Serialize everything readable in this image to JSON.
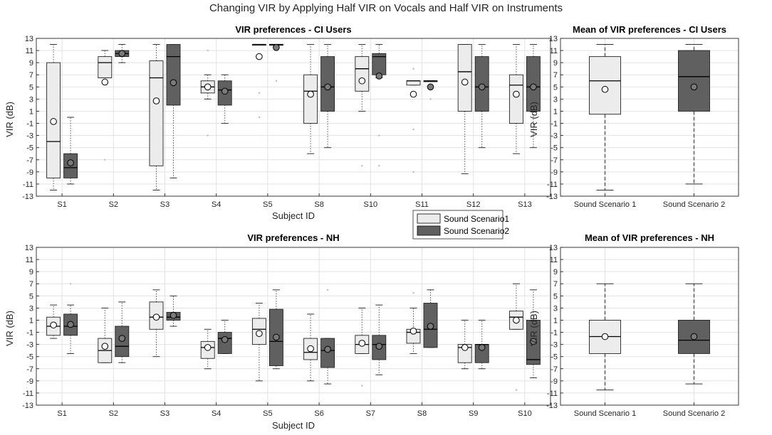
{
  "figure_title": "Changing VIR by Applying Half VIR on Vocals and Half VIR on Instruments",
  "colors": {
    "scenario1": "#ececec",
    "scenario2": "#606060",
    "grid": "#e2e2e2",
    "axis": "#262626"
  },
  "chart_data": [
    {
      "type": "boxplot",
      "id": "ci_subjects",
      "title": "VIR preferences - CI Users",
      "xlabel": "Subject ID",
      "ylabel": "VIR (dB)",
      "ylim": [
        -13,
        13
      ],
      "yticks": [
        "13",
        "11",
        "9",
        "7",
        "5",
        "3",
        "1",
        "-1",
        "-3",
        "-5",
        "-7",
        "-9",
        "-11",
        "-13"
      ],
      "categories": [
        "S1",
        "S2",
        "S3",
        "S4",
        "S5",
        "S8",
        "S10",
        "S11",
        "S12",
        "S13"
      ],
      "legend": {
        "position": "bottom-right-outside",
        "entries": [
          "Sound Scenario1",
          "Sound Scenario2"
        ]
      },
      "series": [
        {
          "name": "Sound Scenario1",
          "boxes": [
            {
              "q1": -10,
              "median": -4,
              "q3": 9,
              "wlo": -12,
              "whi": 12,
              "mean": -0.7,
              "outliers": []
            },
            {
              "q1": 6.5,
              "median": 9,
              "q3": 10,
              "wlo": 6.5,
              "whi": 11,
              "mean": 5.8,
              "outliers": [
                -7
              ]
            },
            {
              "q1": -8,
              "median": 6.5,
              "q3": 9.3,
              "wlo": -12,
              "whi": 12,
              "mean": 2.7,
              "outliers": []
            },
            {
              "q1": 4,
              "median": 5,
              "q3": 6,
              "wlo": 3,
              "whi": 7,
              "mean": 5,
              "outliers": [
                11,
                -3
              ]
            },
            {
              "q1": 12,
              "median": 12,
              "q3": 12,
              "wlo": 12,
              "whi": 12,
              "mean": 10,
              "outliers": [
                4,
                0
              ]
            },
            {
              "q1": -1,
              "median": 4.3,
              "q3": 7,
              "wlo": -6,
              "whi": 12,
              "mean": 3.8,
              "outliers": []
            },
            {
              "q1": 4.3,
              "median": 8,
              "q3": 10,
              "wlo": 1,
              "whi": 12,
              "mean": 6,
              "outliers": [
                -8
              ]
            },
            {
              "q1": 5.3,
              "median": 6,
              "q3": 6,
              "wlo": 5.3,
              "whi": 6,
              "mean": 3.8,
              "outliers": [
                8,
                -2,
                -9
              ]
            },
            {
              "q1": 1,
              "median": 7.5,
              "q3": 12,
              "wlo": -9.3,
              "whi": 12,
              "mean": 5.8,
              "outliers": []
            },
            {
              "q1": -1,
              "median": 5.3,
              "q3": 7,
              "wlo": -6,
              "whi": 12,
              "mean": 3.8,
              "outliers": []
            }
          ]
        },
        {
          "name": "Sound Scenario2",
          "boxes": [
            {
              "q1": -10,
              "median": -8.3,
              "q3": -6,
              "wlo": -11,
              "whi": 0,
              "mean": -7.5,
              "outliers": []
            },
            {
              "q1": 10,
              "median": 10.5,
              "q3": 11,
              "wlo": 9,
              "whi": 12,
              "mean": 10.5,
              "outliers": []
            },
            {
              "q1": 2,
              "median": 10,
              "q3": 12,
              "wlo": -10,
              "whi": 12,
              "mean": 5.7,
              "outliers": []
            },
            {
              "q1": 2,
              "median": 4.5,
              "q3": 6,
              "wlo": -1,
              "whi": 7,
              "mean": 4.3,
              "outliers": []
            },
            {
              "q1": 12,
              "median": 12,
              "q3": 12,
              "wlo": 12,
              "whi": 12,
              "mean": 11.5,
              "outliers": [
                6
              ]
            },
            {
              "q1": 1,
              "median": 5,
              "q3": 10,
              "wlo": -5,
              "whi": 12,
              "mean": 5,
              "outliers": []
            },
            {
              "q1": 7,
              "median": 10,
              "q3": 10.5,
              "wlo": 6.5,
              "whi": 12,
              "mean": 6.8,
              "outliers": [
                -3,
                -8
              ]
            },
            {
              "q1": 6,
              "median": 6,
              "q3": 6,
              "wlo": 6,
              "whi": 6,
              "mean": 5,
              "outliers": [
                3
              ]
            },
            {
              "q1": 1,
              "median": 5,
              "q3": 10,
              "wlo": -5,
              "whi": 12,
              "mean": 5,
              "outliers": []
            },
            {
              "q1": 1,
              "median": 5,
              "q3": 10,
              "wlo": -5,
              "whi": 12,
              "mean": 5,
              "outliers": []
            }
          ]
        }
      ]
    },
    {
      "type": "boxplot",
      "id": "ci_mean",
      "title": "Mean of VIR preferences - CI Users",
      "xlabel": "",
      "ylabel": "VIR (dB)",
      "ylim": [
        -13,
        13
      ],
      "yticks": [
        "13",
        "11",
        "9",
        "7",
        "5",
        "3",
        "1",
        "-1",
        "-3",
        "-5",
        "-7",
        "-9",
        "-11",
        "-13"
      ],
      "categories": [
        "Sound Scenario 1",
        "Sound Scenario 2"
      ],
      "boxes": [
        {
          "q1": 0.5,
          "median": 6,
          "q3": 10,
          "wlo": -12,
          "whi": 12,
          "mean": 4.6
        },
        {
          "q1": 1,
          "median": 6.7,
          "q3": 11,
          "wlo": -11,
          "whi": 12,
          "mean": 5
        }
      ]
    },
    {
      "type": "boxplot",
      "id": "nh_subjects",
      "title": "VIR preferences - NH",
      "xlabel": "Subject ID",
      "ylabel": "VIR (dB)",
      "ylim": [
        -13,
        13
      ],
      "yticks": [
        "13",
        "11",
        "9",
        "7",
        "5",
        "3",
        "1",
        "-1",
        "-3",
        "-5",
        "-7",
        "-9",
        "-11",
        "-13"
      ],
      "categories": [
        "S1",
        "S2",
        "S3",
        "S4",
        "S5",
        "S6",
        "S7",
        "S8",
        "S9",
        "S10"
      ],
      "series": [
        {
          "name": "Sound Scenario1",
          "boxes": [
            {
              "q1": -1.5,
              "median": 0,
              "q3": 1.5,
              "wlo": -2,
              "whi": 3.5,
              "mean": 0.2,
              "outliers": []
            },
            {
              "q1": -6,
              "median": -4,
              "q3": -2,
              "wlo": -6,
              "whi": 3,
              "mean": -3.3,
              "outliers": []
            },
            {
              "q1": -0.5,
              "median": 1.5,
              "q3": 4,
              "wlo": -5,
              "whi": 6,
              "mean": 1.5,
              "outliers": []
            },
            {
              "q1": -5.3,
              "median": -3.5,
              "q3": -2.5,
              "wlo": -7,
              "whi": -0.5,
              "mean": -3.5,
              "outliers": []
            },
            {
              "q1": -3,
              "median": -0.5,
              "q3": 1.3,
              "wlo": -9,
              "whi": 3.8,
              "mean": -1.2,
              "outliers": []
            },
            {
              "q1": -5.5,
              "median": -4.3,
              "q3": -2,
              "wlo": -9,
              "whi": 2,
              "mean": -3.7,
              "outliers": []
            },
            {
              "q1": -4.5,
              "median": -3,
              "q3": -1.5,
              "wlo": -4.5,
              "whi": 3,
              "mean": -2.8,
              "outliers": [
                -9.8
              ]
            },
            {
              "q1": -2.8,
              "median": -1,
              "q3": -0.5,
              "wlo": -4.5,
              "whi": 3,
              "mean": -0.8,
              "outliers": [
                5.5
              ]
            },
            {
              "q1": -6,
              "median": -3.5,
              "q3": -3,
              "wlo": -7,
              "whi": 1,
              "mean": -3.5,
              "outliers": []
            },
            {
              "q1": -0.5,
              "median": 1.5,
              "q3": 2.5,
              "wlo": -0.5,
              "whi": 7,
              "mean": 1,
              "outliers": [
                -10.5
              ]
            }
          ]
        },
        {
          "name": "Sound Scenario2",
          "boxes": [
            {
              "q1": -1.5,
              "median": 0,
              "q3": 2,
              "wlo": -4.5,
              "whi": 3.5,
              "mean": 0.3,
              "outliers": [
                7
              ]
            },
            {
              "q1": -5,
              "median": -3.3,
              "q3": 0,
              "wlo": -6,
              "whi": 4,
              "mean": -2,
              "outliers": []
            },
            {
              "q1": 1,
              "median": 1.5,
              "q3": 2.3,
              "wlo": 0,
              "whi": 5,
              "mean": 1.8,
              "outliers": []
            },
            {
              "q1": -4.5,
              "median": -2,
              "q3": -1,
              "wlo": -4.5,
              "whi": 1,
              "mean": -2.2,
              "outliers": []
            },
            {
              "q1": -6.5,
              "median": -2.5,
              "q3": 2.8,
              "wlo": -7,
              "whi": 6,
              "mean": -1.8,
              "outliers": []
            },
            {
              "q1": -6.8,
              "median": -4,
              "q3": -2,
              "wlo": -9.5,
              "whi": -2,
              "mean": -3.8,
              "outliers": [
                6
              ]
            },
            {
              "q1": -5.5,
              "median": -3,
              "q3": -1.5,
              "wlo": -8,
              "whi": 3.5,
              "mean": -3.3,
              "outliers": []
            },
            {
              "q1": -3.5,
              "median": -0.5,
              "q3": 3.8,
              "wlo": -3.5,
              "whi": 6,
              "mean": 0,
              "outliers": []
            },
            {
              "q1": -6,
              "median": -3,
              "q3": -3,
              "wlo": -7,
              "whi": 1,
              "mean": -3.5,
              "outliers": []
            },
            {
              "q1": -6.3,
              "median": -5.5,
              "q3": 1,
              "wlo": -8.5,
              "whi": 6,
              "mean": -2.5,
              "outliers": []
            }
          ]
        }
      ]
    },
    {
      "type": "boxplot",
      "id": "nh_mean",
      "title": "Mean of VIR preferences - NH",
      "xlabel": "",
      "ylabel": "VIR (dB)",
      "ylim": [
        -13,
        13
      ],
      "yticks": [
        "13",
        "11",
        "9",
        "7",
        "5",
        "3",
        "1",
        "-1",
        "-3",
        "-5",
        "-7",
        "-9",
        "-11",
        "-13"
      ],
      "categories": [
        "Sound Scenario 1",
        "Sound Scenario 2"
      ],
      "boxes": [
        {
          "q1": -4.5,
          "median": -1.7,
          "q3": 1,
          "wlo": -10.5,
          "whi": 7,
          "mean": -1.7
        },
        {
          "q1": -4.5,
          "median": -2.3,
          "q3": 1,
          "wlo": -9.5,
          "whi": 7,
          "mean": -1.7
        }
      ]
    }
  ]
}
